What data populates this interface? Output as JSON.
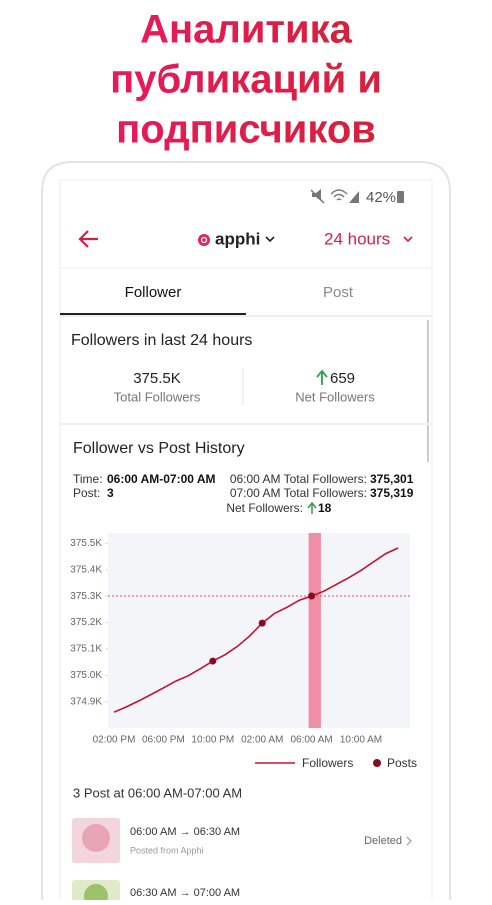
{
  "header": {
    "title_lines": [
      "Аналитика",
      "публикаций и",
      "подписчиков"
    ]
  },
  "status_bar": {
    "battery": "42%"
  },
  "app_bar": {
    "account": "apphi",
    "range": "24 hours"
  },
  "tabs": [
    "Follower",
    "Post"
  ],
  "summary": {
    "title": "Followers in last 24 hours",
    "total_value": "375.5K",
    "total_label": "Total Followers",
    "net_value": "659",
    "net_label": "Net Followers"
  },
  "history": {
    "title": "Follower vs Post History",
    "time_label": "Time:",
    "time_value": "06:00 AM-07:00 AM",
    "post_label": "Post:",
    "post_value": "3",
    "start_label": "06:00 AM Total Followers:",
    "start_value": "375,301",
    "end_label": "07:00 AM Total Followers:",
    "end_value": "375,319",
    "net_label": "Net Followers:",
    "net_value": "18"
  },
  "chart": {
    "type": "line",
    "categories": [
      "02:00 PM",
      null,
      null,
      null,
      "06:00 PM",
      null,
      null,
      null,
      "10:00 PM",
      null,
      null,
      null,
      "02:00 AM",
      null,
      null,
      null,
      "06:00 AM",
      null,
      null,
      null,
      "10:00 AM",
      null,
      null,
      null
    ],
    "series": [
      {
        "name": "Followers",
        "color": "#c8102e",
        "values": [
          374860,
          374880,
          374903,
          374927,
          374952,
          374978,
          374998,
          375025,
          375054,
          375078,
          375110,
          375150,
          375198,
          375235,
          375258,
          375285,
          375301,
          375319,
          375345,
          375370,
          375398,
          375430,
          375462,
          375483
        ]
      },
      {
        "name": "Posts",
        "color": "#8b0a1e",
        "values": [
          null,
          null,
          null,
          null,
          null,
          null,
          null,
          null,
          375054,
          null,
          null,
          null,
          375198,
          null,
          null,
          null,
          375301,
          null,
          null,
          null,
          null,
          null,
          null,
          null
        ]
      }
    ],
    "selected_index": 16,
    "ylim": [
      374800,
      375540
    ],
    "yticks": [
      {
        "value": 374900,
        "label": "374.9K"
      },
      {
        "value": 375000,
        "label": "375.0K"
      },
      {
        "value": 375100,
        "label": "375.1K"
      },
      {
        "value": 375200,
        "label": "375.2K"
      },
      {
        "value": 375300,
        "label": "375.3K"
      },
      {
        "value": 375400,
        "label": "375.4K"
      },
      {
        "value": 375500,
        "label": "375.5K"
      }
    ]
  },
  "posts": {
    "title": "3 Post at 06:00 AM-07:00 AM",
    "items": [
      {
        "time": "06:00 AM → 06:30 AM",
        "source": "Posted from Apphi",
        "status": "Deleted"
      },
      {
        "time": "06:30 AM → 07:00 AM"
      }
    ]
  }
}
